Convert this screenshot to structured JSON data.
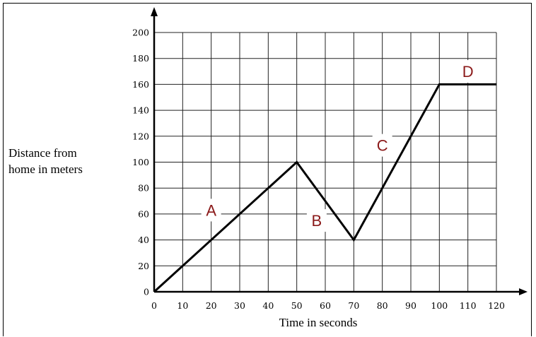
{
  "chart_data": {
    "type": "line",
    "title": "",
    "xlabel": "Time in seconds",
    "ylabel": [
      "Distance from",
      "home in meters"
    ],
    "xlim": [
      0,
      120
    ],
    "ylim": [
      0,
      200
    ],
    "x_ticks": [
      0,
      10,
      20,
      30,
      40,
      50,
      60,
      70,
      80,
      90,
      100,
      110,
      120
    ],
    "y_ticks": [
      0,
      20,
      40,
      60,
      80,
      100,
      120,
      140,
      160,
      180,
      200
    ],
    "grid": true,
    "series": [
      {
        "x": [
          0,
          50,
          70,
          100,
          120
        ],
        "y": [
          0,
          100,
          40,
          160,
          160
        ]
      }
    ],
    "segment_labels": [
      {
        "text": "A",
        "x": 20,
        "y": 63
      },
      {
        "text": "B",
        "x": 57,
        "y": 55
      },
      {
        "text": "C",
        "x": 80,
        "y": 113
      },
      {
        "text": "D",
        "x": 110,
        "y": 170
      }
    ]
  }
}
